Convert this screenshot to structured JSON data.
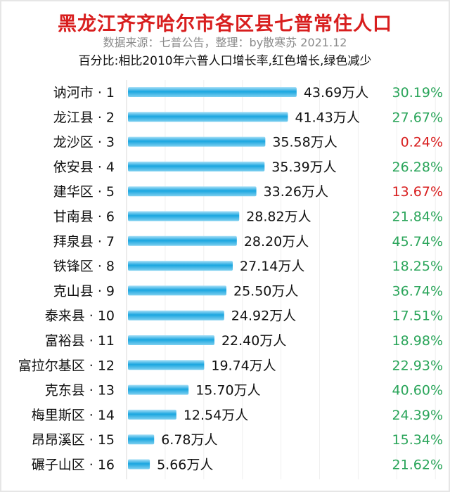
{
  "chart_data": {
    "type": "bar",
    "orientation": "horizontal",
    "title": "黑龙江齐齐哈尔市各区县七普常住人口",
    "subtitle": "数据来源：七普公告，整理：by散寒苏  2021.12",
    "note": "百分比:相比2010年六普人口增长率,红色增长,绿色减少",
    "value_unit": "万人",
    "categories": [
      "讷河市 · 1",
      "龙江县 · 2",
      "龙沙区 · 3",
      "依安县 · 4",
      "建华区 · 5",
      "甘南县 · 6",
      "拜泉县 · 7",
      "铁锋区 · 8",
      "克山县 · 9",
      "泰来县 · 10",
      "富裕县 · 11",
      "富拉尔基区 · 12",
      "克东县 · 13",
      "梅里斯区 · 14",
      "昂昂溪区 · 15",
      "碾子山区 · 16"
    ],
    "values": [
      43.69,
      41.43,
      35.58,
      35.39,
      33.26,
      28.82,
      28.2,
      27.14,
      25.5,
      24.92,
      22.4,
      19.74,
      15.7,
      12.54,
      6.78,
      5.66
    ],
    "value_labels": [
      "43.69万人",
      "41.43万人",
      "35.58万人",
      "35.39万人",
      "33.26万人",
      "28.82万人",
      "28.20万人",
      "27.14万人",
      "25.50万人",
      "24.92万人",
      "22.40万人",
      "19.74万人",
      "15.70万人",
      "12.54万人",
      "6.78万人",
      "5.66万人"
    ],
    "percent_labels": [
      "30.19%",
      "27.67%",
      "0.24%",
      "26.28%",
      "13.67%",
      "21.84%",
      "45.74%",
      "18.25%",
      "36.74%",
      "17.51%",
      "18.98%",
      "22.93%",
      "40.60%",
      "24.39%",
      "15.34%",
      "21.62%"
    ],
    "percent_colors": [
      "green",
      "green",
      "red",
      "green",
      "red",
      "green",
      "green",
      "green",
      "green",
      "green",
      "green",
      "green",
      "green",
      "green",
      "green",
      "green"
    ],
    "grid": true,
    "colors": {
      "bar": "#1aa6e0",
      "red": "#d81e1e",
      "green": "#2aa55a",
      "title": "#d81e1e"
    }
  }
}
